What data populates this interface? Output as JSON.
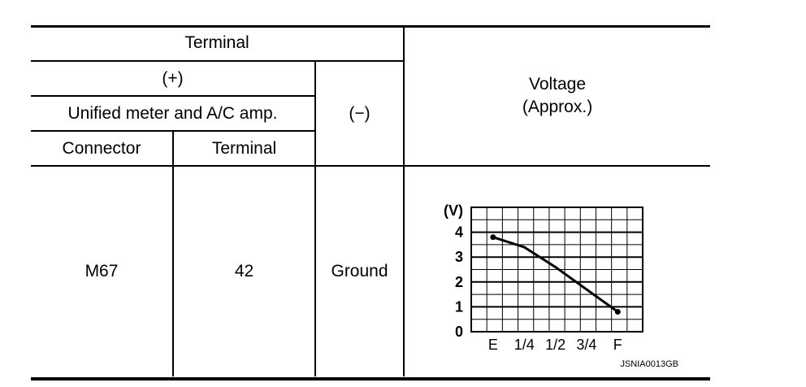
{
  "header": {
    "terminal": "Terminal",
    "plus": "(+)",
    "unit": "Unified meter and A/C amp.",
    "minus": "(−)",
    "connector": "Connector",
    "terminal_col": "Terminal",
    "voltage": "Voltage",
    "approx": "(Approx.)"
  },
  "row": {
    "connector": "M67",
    "terminal": "42",
    "ground": "Ground"
  },
  "chart_data": {
    "type": "line",
    "ylabel": "(V)",
    "y_ticks": [
      "0",
      "1",
      "2",
      "3",
      "4"
    ],
    "x_ticks": [
      "E",
      "1/4",
      "1/2",
      "3/4",
      "F"
    ],
    "ylim": [
      0,
      5
    ],
    "grid": true,
    "series": [
      {
        "x": [
          "E",
          "1/4",
          "1/2",
          "3/4",
          "F"
        ],
        "values": [
          3.8,
          3.4,
          2.6,
          1.7,
          0.8
        ]
      }
    ],
    "figure_code": "JSNIA0013GB"
  }
}
